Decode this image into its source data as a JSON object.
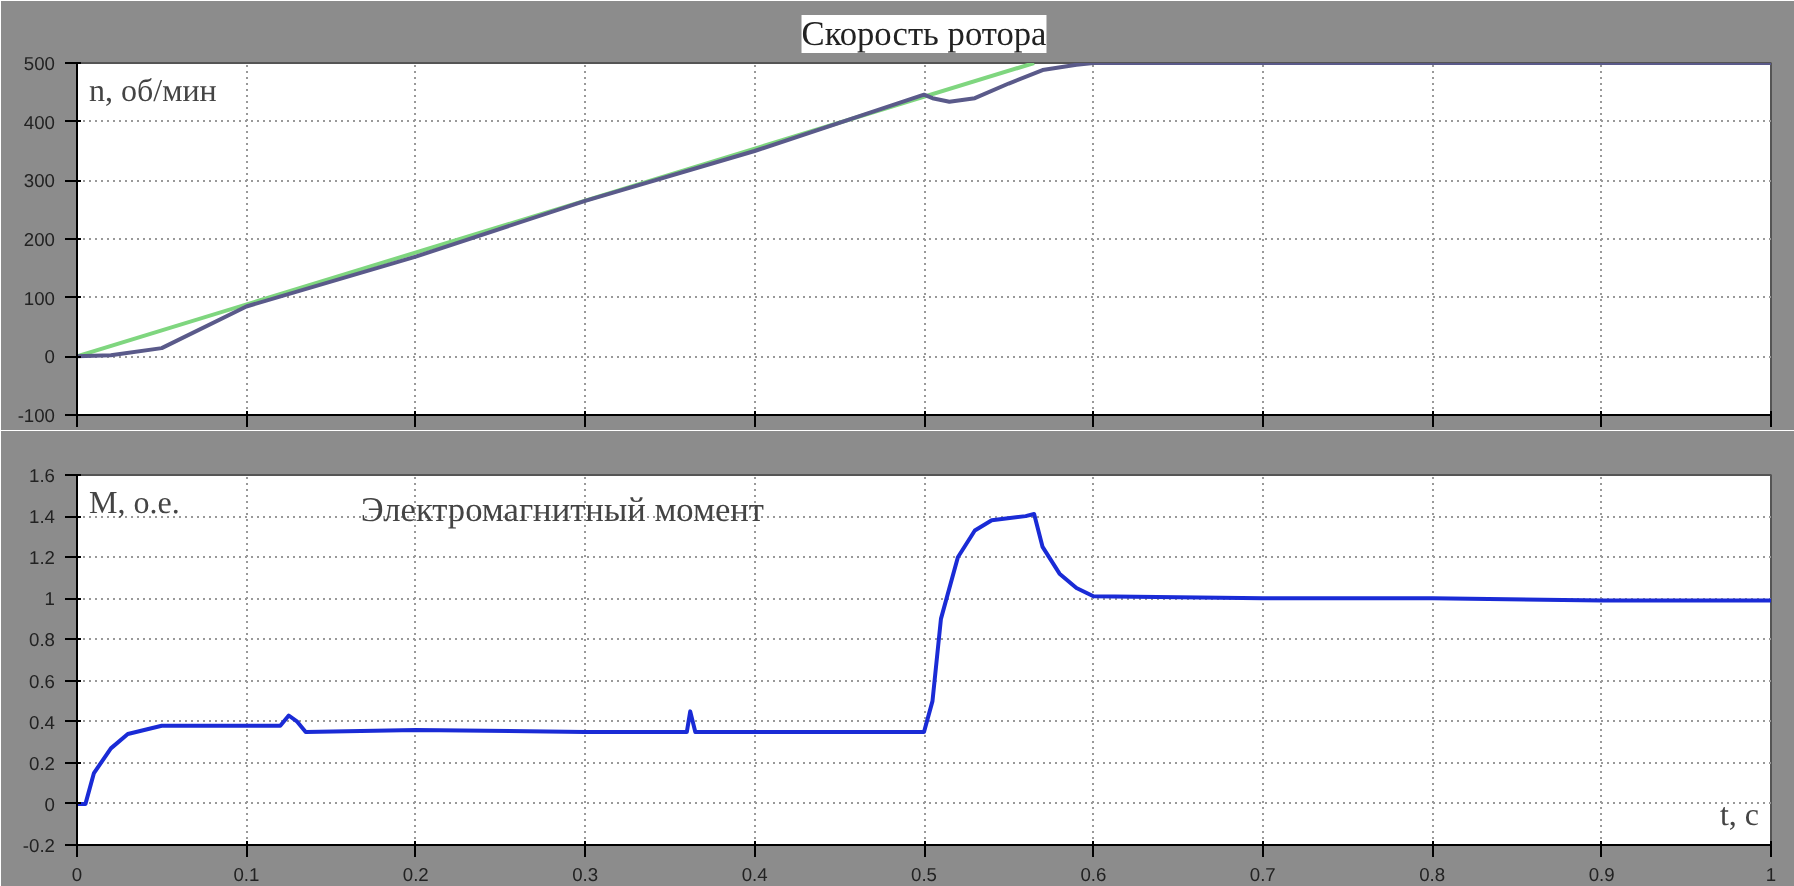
{
  "chart_data": [
    {
      "type": "line",
      "title": "Скорость ротора",
      "ylabel": "n, об/мин",
      "xlim": [
        0,
        1
      ],
      "ylim": [
        -100,
        500
      ],
      "xticks": [
        0,
        0.1,
        0.2,
        0.3,
        0.4,
        0.5,
        0.6,
        0.7,
        0.8,
        0.9,
        1
      ],
      "yticks": [
        -100,
        0,
        100,
        200,
        300,
        400,
        500
      ],
      "tick_labels": "y",
      "grid": true,
      "line_style": "solid",
      "series": [
        {
          "color": "#7fd67f",
          "x": [
            0,
            0.565
          ],
          "values": [
            0,
            500
          ]
        },
        {
          "color": "#5a5a8a",
          "x": [
            0,
            0.02,
            0.05,
            0.1,
            0.2,
            0.3,
            0.4,
            0.5,
            0.505,
            0.515,
            0.53,
            0.55,
            0.57,
            0.59,
            0.6,
            1
          ],
          "values": [
            0,
            2,
            14,
            85,
            170,
            265,
            350,
            446,
            440,
            434,
            440,
            465,
            488,
            497,
            500,
            500
          ]
        }
      ]
    },
    {
      "type": "line",
      "title": "Электромагнитный момент",
      "ylabel": "M, о.е.",
      "xlabel": "t, c",
      "xlim": [
        0,
        1
      ],
      "ylim": [
        -0.2,
        1.6
      ],
      "xticks": [
        0,
        0.1,
        0.2,
        0.3,
        0.4,
        0.5,
        0.6,
        0.7,
        0.8,
        0.9,
        1
      ],
      "yticks": [
        -0.2,
        0,
        0.2,
        0.4,
        0.6,
        0.8,
        1,
        1.2,
        1.4,
        1.6
      ],
      "grid": true,
      "line_style": "solid",
      "series": [
        {
          "color": "#1a2bd6",
          "x": [
            0,
            0.005,
            0.01,
            0.02,
            0.03,
            0.05,
            0.1,
            0.12,
            0.125,
            0.13,
            0.135,
            0.2,
            0.3,
            0.36,
            0.362,
            0.365,
            0.4,
            0.5,
            0.505,
            0.51,
            0.52,
            0.53,
            0.54,
            0.56,
            0.565,
            0.57,
            0.58,
            0.59,
            0.6,
            0.7,
            0.8,
            0.9,
            1
          ],
          "values": [
            0,
            0,
            0.15,
            0.27,
            0.34,
            0.38,
            0.38,
            0.38,
            0.43,
            0.4,
            0.35,
            0.36,
            0.35,
            0.35,
            0.45,
            0.35,
            0.35,
            0.35,
            0.5,
            0.9,
            1.2,
            1.33,
            1.38,
            1.4,
            1.41,
            1.25,
            1.12,
            1.05,
            1.01,
            1.0,
            1.0,
            0.99,
            0.99
          ]
        }
      ]
    }
  ]
}
